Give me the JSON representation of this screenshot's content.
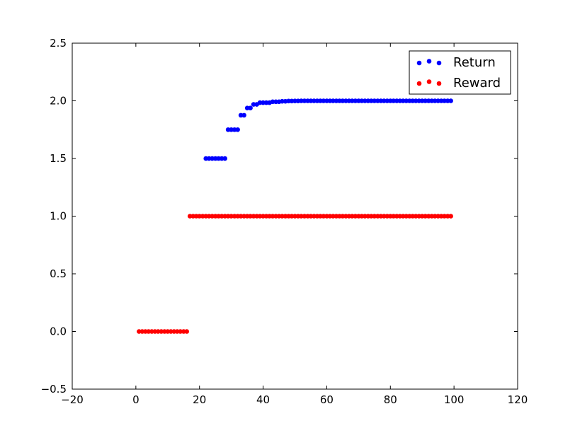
{
  "chart_data": {
    "type": "scatter",
    "title": "",
    "xlabel": "",
    "ylabel": "",
    "xlim": [
      -20,
      120
    ],
    "ylim": [
      -0.5,
      2.5
    ],
    "x_ticks": [
      -20,
      0,
      20,
      40,
      60,
      80,
      100,
      120
    ],
    "x_tick_labels": [
      "−20",
      "0",
      "20",
      "40",
      "60",
      "80",
      "100",
      "120"
    ],
    "y_ticks": [
      -0.5,
      0.0,
      0.5,
      1.0,
      1.5,
      2.0,
      2.5
    ],
    "y_tick_labels": [
      "−0.5",
      "0.0",
      "0.5",
      "1.0",
      "1.5",
      "2.0",
      "2.5"
    ],
    "grid": false,
    "legend_position": "top-right",
    "series": [
      {
        "name": "Return",
        "color": "#0000ff",
        "x": [
          22,
          23,
          24,
          25,
          26,
          27,
          28,
          29,
          30,
          31,
          32,
          33,
          34,
          35,
          36,
          37,
          38,
          39,
          40,
          41,
          42,
          43,
          44,
          45,
          46,
          47,
          48,
          49,
          50,
          51,
          52,
          53,
          54,
          55,
          56,
          57,
          58,
          59,
          60,
          61,
          62,
          63,
          64,
          65,
          66,
          67,
          68,
          69,
          70,
          71,
          72,
          73,
          74,
          75,
          76,
          77,
          78,
          79,
          80,
          81,
          82,
          83,
          84,
          85,
          86,
          87,
          88,
          89,
          90,
          91,
          92,
          93,
          94,
          95,
          96,
          97,
          98,
          99
        ],
        "y": [
          1.5,
          1.5,
          1.5,
          1.5,
          1.5,
          1.5,
          1.5,
          1.75,
          1.75,
          1.75,
          1.75,
          1.875,
          1.875,
          1.9375,
          1.9375,
          1.96875,
          1.96875,
          1.984,
          1.984,
          1.984,
          1.984,
          1.992,
          1.992,
          1.992,
          1.996,
          1.996,
          1.998,
          1.998,
          1.999,
          1.999,
          2.0,
          2.0,
          2.0,
          2.0,
          2.0,
          2.0,
          2.0,
          2.0,
          2.0,
          2.0,
          2.0,
          2.0,
          2.0,
          2.0,
          2.0,
          2.0,
          2.0,
          2.0,
          2.0,
          2.0,
          2.0,
          2.0,
          2.0,
          2.0,
          2.0,
          2.0,
          2.0,
          2.0,
          2.0,
          2.0,
          2.0,
          2.0,
          2.0,
          2.0,
          2.0,
          2.0,
          2.0,
          2.0,
          2.0,
          2.0,
          2.0,
          2.0,
          2.0,
          2.0,
          2.0,
          2.0,
          2.0,
          2.0
        ]
      },
      {
        "name": "Reward",
        "color": "#ff0000",
        "x": [
          1,
          2,
          3,
          4,
          5,
          6,
          7,
          8,
          9,
          10,
          11,
          12,
          13,
          14,
          15,
          16,
          17,
          18,
          19,
          20,
          21,
          22,
          23,
          24,
          25,
          26,
          27,
          28,
          29,
          30,
          31,
          32,
          33,
          34,
          35,
          36,
          37,
          38,
          39,
          40,
          41,
          42,
          43,
          44,
          45,
          46,
          47,
          48,
          49,
          50,
          51,
          52,
          53,
          54,
          55,
          56,
          57,
          58,
          59,
          60,
          61,
          62,
          63,
          64,
          65,
          66,
          67,
          68,
          69,
          70,
          71,
          72,
          73,
          74,
          75,
          76,
          77,
          78,
          79,
          80,
          81,
          82,
          83,
          84,
          85,
          86,
          87,
          88,
          89,
          90,
          91,
          92,
          93,
          94,
          95,
          96,
          97,
          98,
          99
        ],
        "y": [
          0,
          0,
          0,
          0,
          0,
          0,
          0,
          0,
          0,
          0,
          0,
          0,
          0,
          0,
          0,
          0,
          1,
          1,
          1,
          1,
          1,
          1,
          1,
          1,
          1,
          1,
          1,
          1,
          1,
          1,
          1,
          1,
          1,
          1,
          1,
          1,
          1,
          1,
          1,
          1,
          1,
          1,
          1,
          1,
          1,
          1,
          1,
          1,
          1,
          1,
          1,
          1,
          1,
          1,
          1,
          1,
          1,
          1,
          1,
          1,
          1,
          1,
          1,
          1,
          1,
          1,
          1,
          1,
          1,
          1,
          1,
          1,
          1,
          1,
          1,
          1,
          1,
          1,
          1,
          1,
          1,
          1,
          1,
          1,
          1,
          1,
          1,
          1,
          1,
          1,
          1,
          1,
          1,
          1,
          1,
          1,
          1,
          1,
          1
        ]
      }
    ]
  }
}
